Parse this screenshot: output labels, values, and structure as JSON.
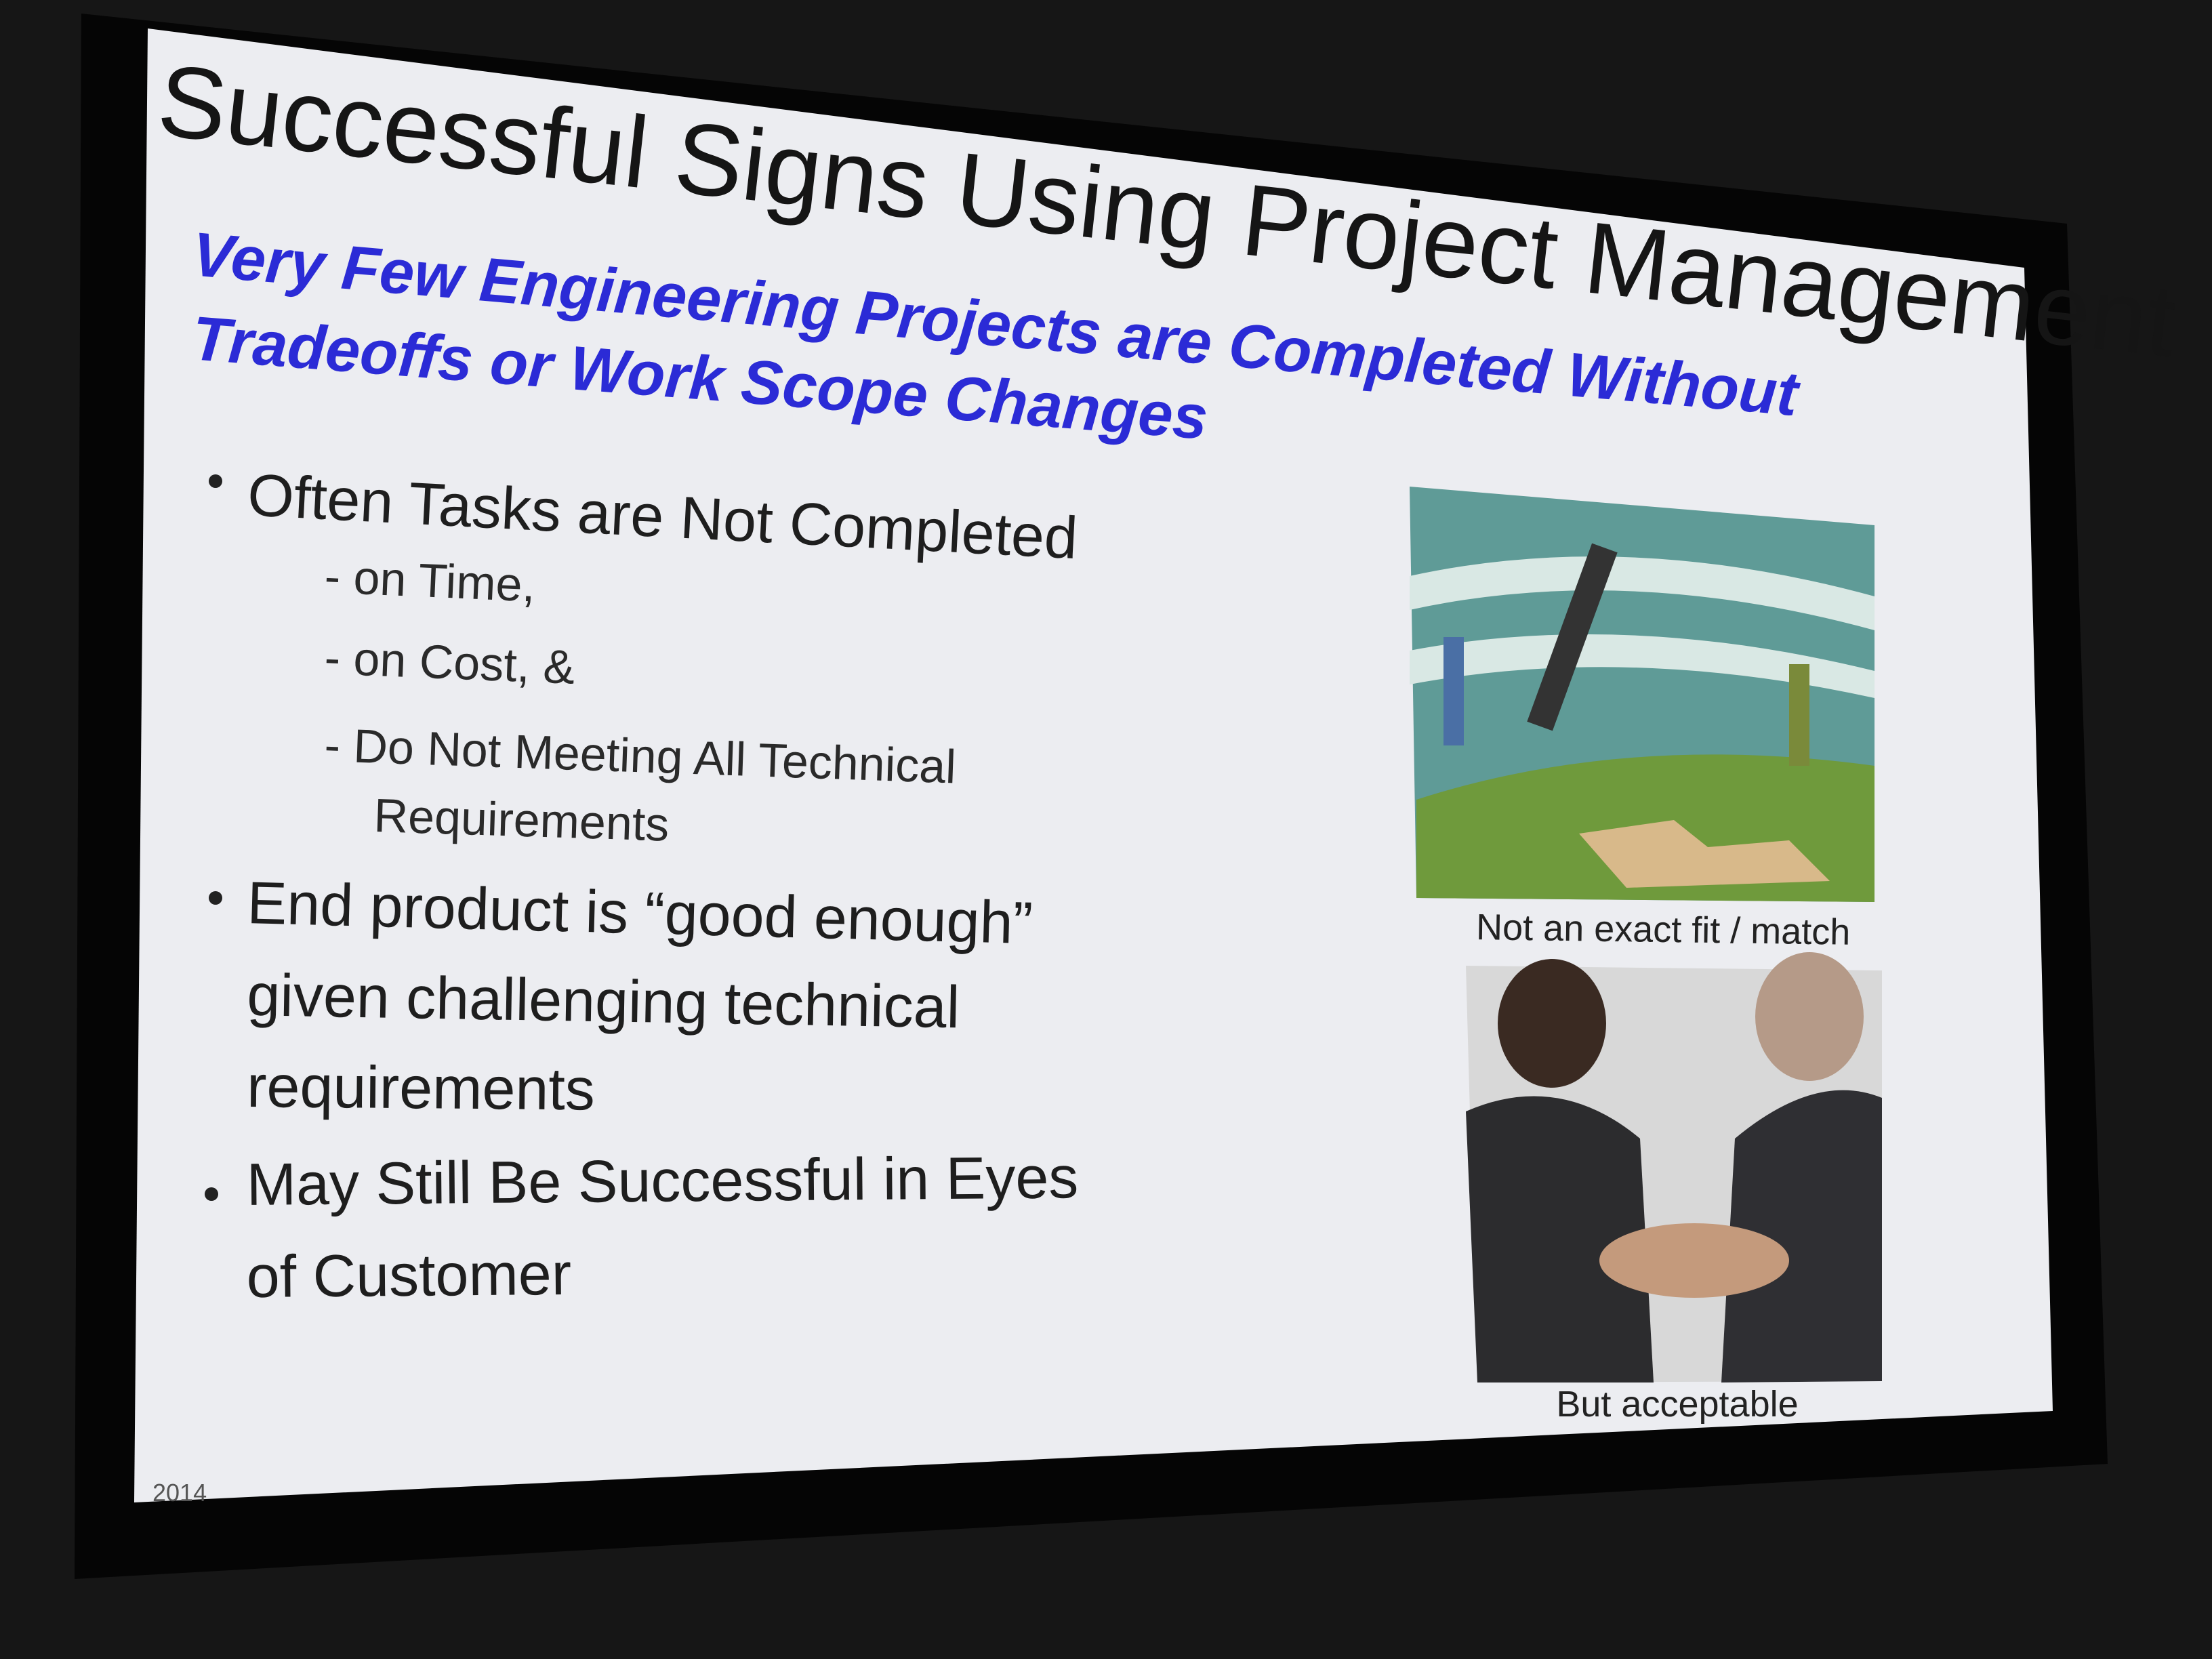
{
  "slide": {
    "title": "Successful Signs Using Project Management",
    "subtitle_lines": [
      "Very Few Engineering Projects are Completed Without",
      "Tradeoffs or Work Scope Changes"
    ],
    "bullets": [
      {
        "lines": [
          "Often Tasks are Not Completed"
        ],
        "subitems": [
          "- on Time,",
          "- on Cost, &",
          "- Do Not Meeting All Technical",
          "Requirements"
        ]
      },
      {
        "lines": [
          "End product is “good enough”",
          "given challenging technical",
          "requirements"
        ]
      },
      {
        "lines": [
          "May Still Be Successful in Eyes",
          "of Customer"
        ]
      }
    ],
    "images": [
      {
        "caption": "Not an exact fit / match"
      },
      {
        "caption": "But acceptable"
      }
    ],
    "footer": "2014"
  }
}
